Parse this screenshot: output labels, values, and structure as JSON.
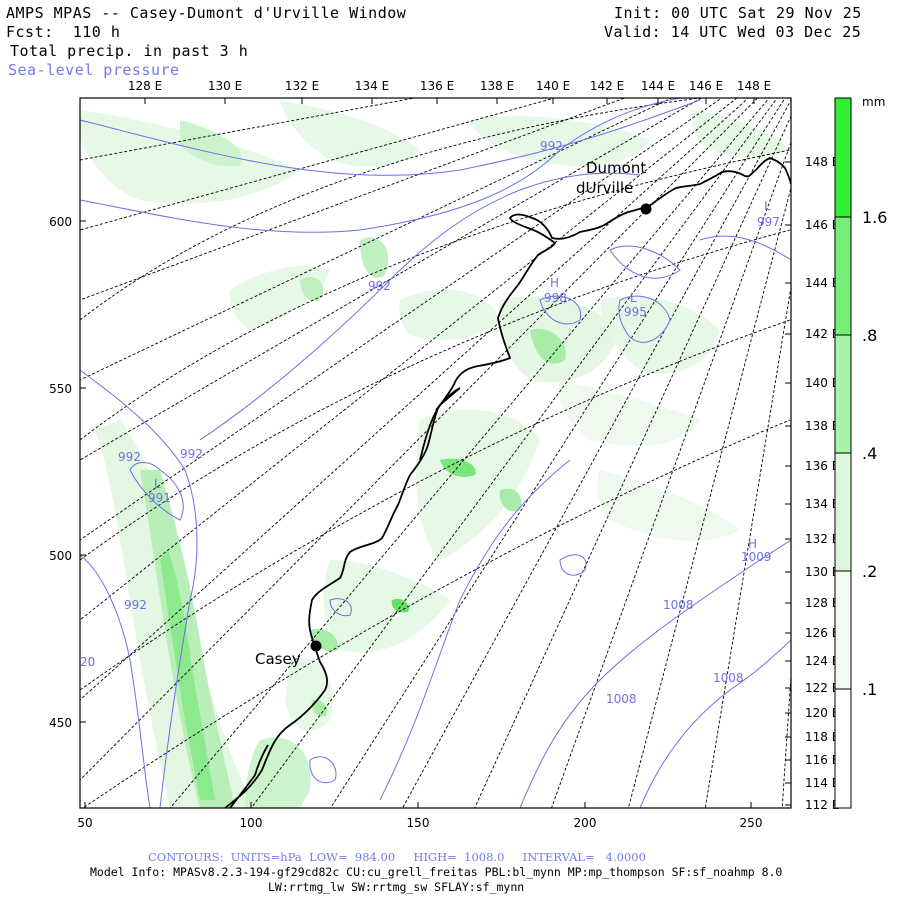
{
  "header": {
    "title": "AMPS MPAS -- Casey-Dumont d'Urville Window",
    "init": "Init: 00 UTC Sat 29 Nov 25",
    "fcst": "Fcst:  110 h",
    "valid": "Valid: 14 UTC Wed 03 Dec 25",
    "field": "Total precip. in past 3 h",
    "overlay": "Sea-level pressure"
  },
  "axes": {
    "top_lon_labels": [
      "128 E",
      "130 E",
      "132 E",
      "134 E",
      "136 E",
      "138 E",
      "140 E",
      "142 E",
      "144 E",
      "146 E",
      "148 E"
    ],
    "right_lon_labels": [
      "148 E",
      "146 E",
      "144 E",
      "142 E",
      "140 E",
      "138 E",
      "136 E",
      "134 E",
      "132 E",
      "130 E",
      "128 E",
      "126 E",
      "124 E",
      "122 E",
      "120 E",
      "118 E",
      "116 E",
      "114 E",
      "112 E"
    ],
    "left_y_labels": [
      "600",
      "550",
      "500",
      "450"
    ],
    "bottom_x_labels": [
      "50",
      "100",
      "150",
      "200",
      "250"
    ]
  },
  "map_labels": {
    "stations": [
      {
        "name": "Dumont",
        "name2": "dUrville"
      },
      {
        "name": "Casey"
      }
    ],
    "isobars": [
      "992",
      "992",
      "992",
      "992",
      "992",
      "991",
      "998",
      "995",
      "997",
      "1008",
      "1008",
      "1008",
      "1009",
      "20"
    ],
    "highs": [
      "H",
      "H"
    ],
    "lows": [
      "L",
      "L",
      "L"
    ]
  },
  "colorbar": {
    "unit": "mm",
    "labels": [
      "1.6",
      ".8",
      ".4",
      ".2",
      ".1"
    ],
    "colors": [
      "#33ee33",
      "#77ee77",
      "#aaf2aa",
      "#dcf7dc",
      "#f2fbf2"
    ]
  },
  "footer": {
    "contours": "CONTOURS:  UNITS=hPa  LOW=  984.00     HIGH=  1008.0     INTERVAL=   4.0000",
    "model_info": "Model Info: MPASv8.2.3-194-gf29cd82c CU:cu_grell_freitas PBL:bl_mynn MP:mp_thompson SF:sf_noahmp 8.0",
    "model_info2": "LW:rrtmg_lw SW:rrtmg_sw SFLAY:sf_mynn"
  },
  "colors": {
    "isobar": "#6f6fe6",
    "coast": "#000000",
    "grid": "#000000"
  }
}
